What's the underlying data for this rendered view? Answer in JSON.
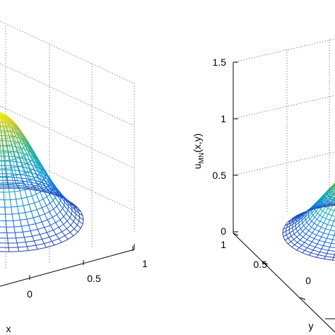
{
  "chart_data": [
    {
      "type": "surface",
      "view": "left panel (cropped)",
      "xlabel": "x",
      "ylabel": "",
      "zlabel": "",
      "x_ticks": [
        "0",
        "0.5",
        "1"
      ],
      "xlim": [
        -1,
        1
      ],
      "colormap": "parula",
      "shape": "peaked mound with flared rim",
      "grid": true
    },
    {
      "type": "surface",
      "view": "right panel (cropped)",
      "xlabel": "",
      "ylabel": "y",
      "zlabel": "u_MN(x,y)",
      "z_ticks": [
        "0",
        "0.5",
        "1",
        "1.5"
      ],
      "zlim": [
        0,
        1.5
      ],
      "y_ticks": [
        "1",
        "0.5",
        "0"
      ],
      "colormap": "parula",
      "shape": "peaked mound with flared rim",
      "grid": true
    }
  ],
  "left": {
    "xlabel": "x",
    "x_ticks": [
      "0",
      "0.5",
      "1"
    ]
  },
  "right": {
    "zlabel_main": "u",
    "zlabel_sub": "MN",
    "zlabel_rest": "(x,y)",
    "ylabel": "y",
    "z_ticks": [
      "0",
      "0.5",
      "1",
      "1.5"
    ],
    "y_ticks": [
      "1",
      "0.5",
      "0"
    ]
  }
}
